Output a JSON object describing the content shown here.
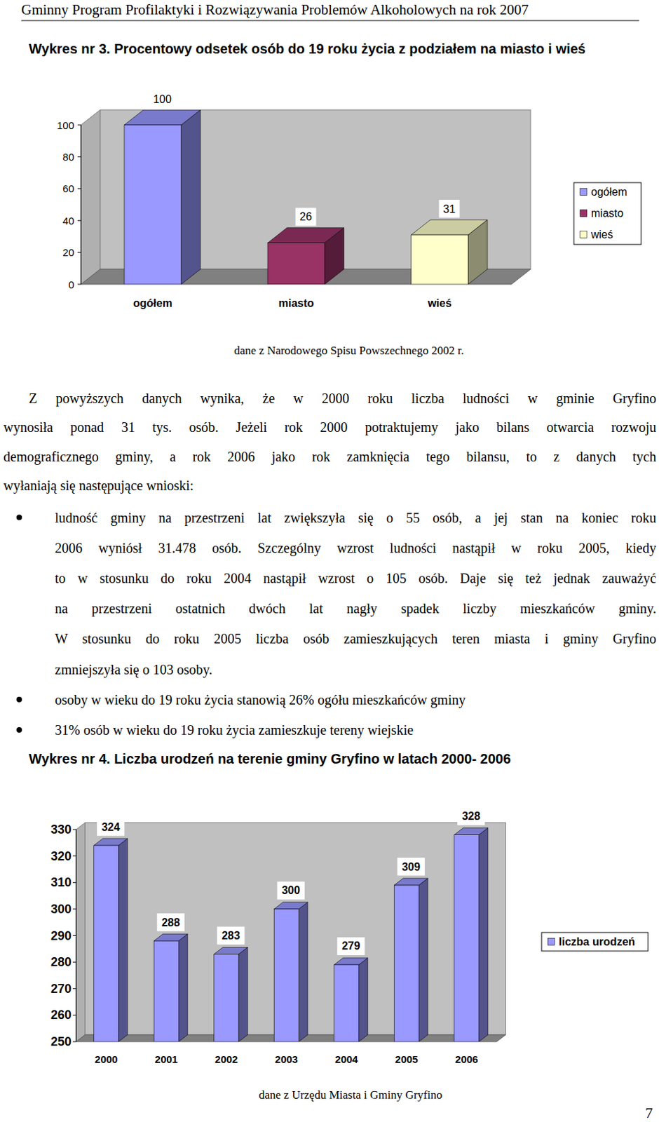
{
  "document": {
    "header": "Gminny Program Profilaktyki i Rozwiązywania Problemów Alkoholowych na rok 2007",
    "paragraph": [
      "Z powyższych danych wynika, że w 2000 roku liczba ludności w gminie Gryfino",
      "wynosiła ponad 31 tys. osób. Jeżeli rok 2000 potraktujemy jako bilans otwarcia rozwoju",
      "demograficznego gminy, a rok 2006 jako rok zamknięcia tego bilansu, to z danych tych",
      "wyłaniają się następujące wnioski:"
    ],
    "bullets": [
      [
        "ludność gminy na przestrzeni lat zwiększyła się o 55 osób, a jej stan na koniec roku",
        "2006 wyniósł 31.478 osób. Szczególny wzrost ludności nastąpił w roku 2005, kiedy",
        "to w stosunku do roku 2004 nastąpił wzrost o 105 osób. Daje się też jednak zauważyć",
        "na przestrzeni ostatnich dwóch lat nagły spadek liczby mieszkańców gminy.",
        "W stosunku do roku 2005 liczba osób zamieszkujących teren miasta i gminy Gryfino",
        "zmniejszyła się o 103 osoby."
      ],
      [
        "osoby w wieku do 19 roku życia stanowią 26% ogółu mieszkańców gminy"
      ],
      [
        "31% osób w wieku do 19 roku życia zamieszkuje tereny wiejskie"
      ]
    ],
    "page_number": "7"
  },
  "chart_data": [
    {
      "type": "bar",
      "title": "Wykres nr 3. Procentowy odsetek osób do 19 roku życia z podziałem na miasto i wieś",
      "categories": [
        "ogółem",
        "miasto",
        "wieś"
      ],
      "values": [
        100,
        26,
        31
      ],
      "colors": [
        "#9999ff",
        "#993366",
        "#ffffcc"
      ],
      "ylim": [
        0,
        100
      ],
      "yticks": [
        0,
        20,
        40,
        60,
        80,
        100
      ],
      "grid": false,
      "data_labels": true,
      "legend": "right",
      "annotations": [
        "dane z Narodowego Spisu Powszechnego 2002 r."
      ]
    },
    {
      "type": "bar",
      "title": "Wykres nr 4. Liczba urodzeń na terenie gminy Gryfino w latach 2000- 2006",
      "categories": [
        "2000",
        "2001",
        "2002",
        "2003",
        "2004",
        "2005",
        "2006"
      ],
      "series": [
        {
          "name": "liczba urodzeń",
          "color": "#9999ff",
          "values": [
            324,
            288,
            283,
            300,
            279,
            309,
            328
          ]
        }
      ],
      "ylim": [
        250,
        330
      ],
      "yticks": [
        250,
        260,
        270,
        280,
        290,
        300,
        310,
        320,
        330
      ],
      "grid": false,
      "data_labels": true,
      "legend": "right",
      "annotations": [
        "dane z Urzędu Miasta i Gminy Gryfino"
      ]
    }
  ]
}
